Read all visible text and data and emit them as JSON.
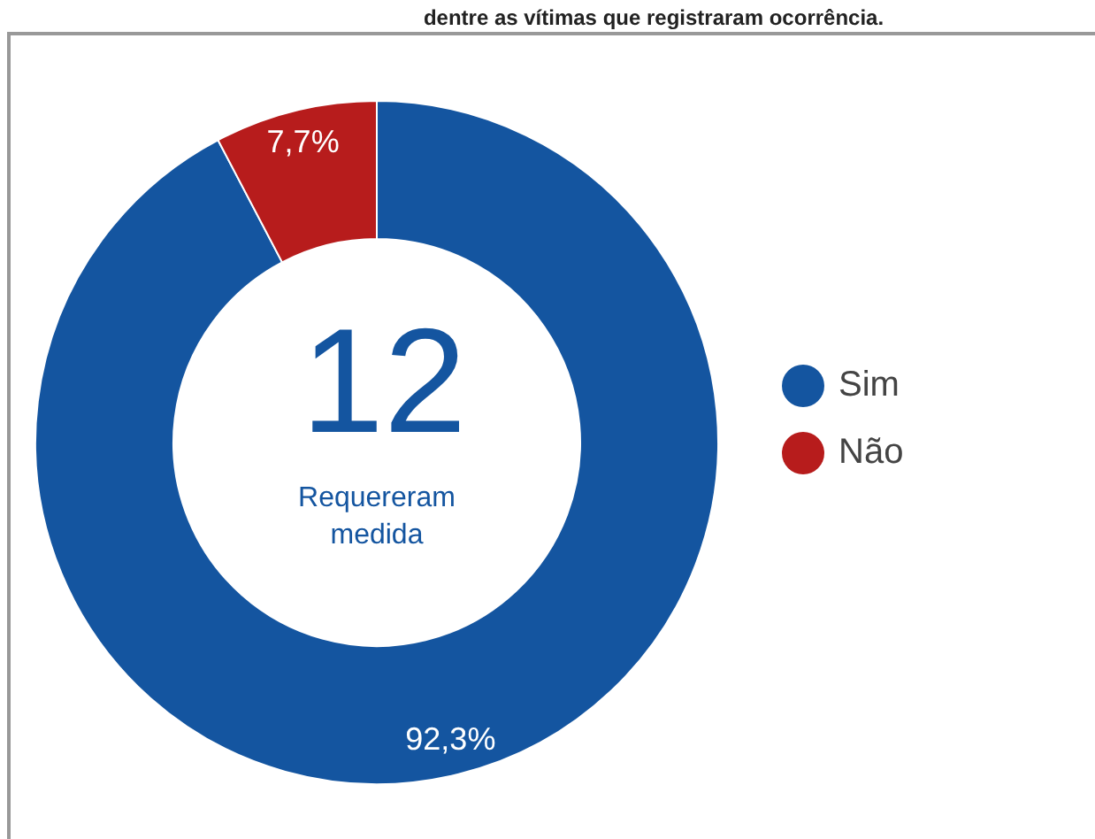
{
  "chart_data": {
    "type": "donut",
    "title": "dentre as vítimas que registraram ocorrência.",
    "categories": [
      "Sim",
      "Não"
    ],
    "values": [
      92.3,
      7.7
    ],
    "colors": [
      "#1455a0",
      "#b71c1c"
    ],
    "value_labels": [
      "92,3%",
      "7,7%"
    ],
    "annotations": [
      "12",
      "Requereram medida"
    ],
    "legend": "right"
  }
}
